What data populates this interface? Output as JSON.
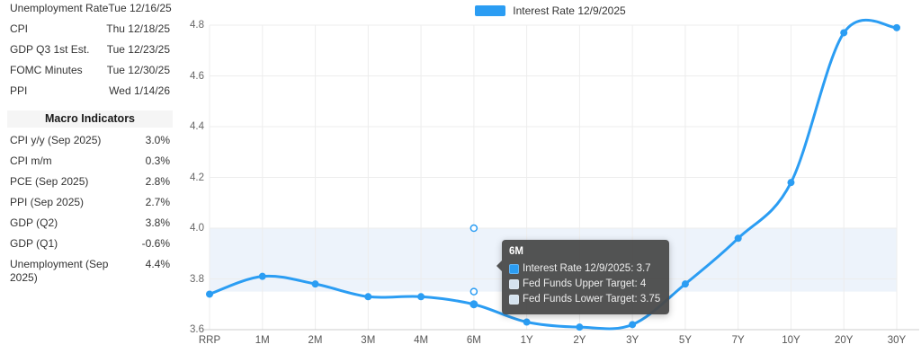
{
  "accent_color": "#2b9df3",
  "band_color": "#edf3fb",
  "sidebar": {
    "calendar": [
      {
        "label": "Unemployment Rate",
        "date": "Tue 12/16/25"
      },
      {
        "label": "CPI",
        "date": "Thu 12/18/25"
      },
      {
        "label": "GDP Q3 1st Est.",
        "date": "Tue 12/23/25"
      },
      {
        "label": "FOMC Minutes",
        "date": "Tue 12/30/25"
      },
      {
        "label": "PPI",
        "date": "Wed 1/14/26"
      }
    ],
    "macro_header": "Macro Indicators",
    "indicators": [
      {
        "label": "CPI y/y (Sep 2025)",
        "value": "3.0%"
      },
      {
        "label": "CPI m/m",
        "value": "0.3%"
      },
      {
        "label": "PCE (Sep 2025)",
        "value": "2.8%"
      },
      {
        "label": "PPI (Sep 2025)",
        "value": "2.7%"
      },
      {
        "label": "GDP (Q2)",
        "value": "3.8%"
      },
      {
        "label": "GDP (Q1)",
        "value": "-0.6%"
      },
      {
        "label": "Unemployment (Sep 2025)",
        "value": "4.4%"
      }
    ]
  },
  "chart_data": {
    "type": "line",
    "title": "",
    "legend": [
      {
        "label": "Interest Rate 12/9/2025",
        "color": "#2b9df3"
      }
    ],
    "legend_position": "top-center",
    "grid": true,
    "categories": [
      "RRP",
      "1M",
      "2M",
      "3M",
      "4M",
      "6M",
      "1Y",
      "2Y",
      "3Y",
      "5Y",
      "7Y",
      "10Y",
      "20Y",
      "30Y"
    ],
    "series": [
      {
        "name": "Interest Rate 12/9/2025",
        "color": "#2b9df3",
        "values": [
          3.74,
          3.81,
          3.78,
          3.73,
          3.73,
          3.7,
          3.63,
          3.61,
          3.62,
          3.78,
          3.96,
          4.18,
          4.77,
          4.79
        ]
      }
    ],
    "band": {
      "name": "Fed Funds Target Range",
      "upper": 4.0,
      "lower": 3.75,
      "color": "#edf3fb"
    },
    "ylim": [
      3.6,
      4.8
    ],
    "yticks": [
      3.6,
      3.8,
      4.0,
      4.2,
      4.4,
      4.6,
      4.8
    ],
    "hover": {
      "category": "6M",
      "upper_marker": 4.0,
      "lower_marker": 3.75
    }
  },
  "tooltip": {
    "title": "6M",
    "rows": [
      {
        "swatch": "#2b9df3",
        "text": "Interest Rate 12/9/2025: 3.7"
      },
      {
        "swatch": "#d5e2ee",
        "text": "Fed Funds Upper Target: 4"
      },
      {
        "swatch": "#d5e2ee",
        "text": "Fed Funds Lower Target: 3.75"
      }
    ]
  }
}
